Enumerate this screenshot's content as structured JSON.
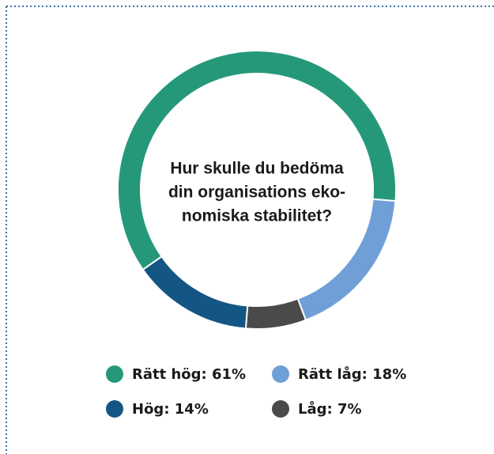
{
  "chart_data": {
    "type": "donut",
    "title": [
      "Hur skulle du bedöma",
      "din organisations eko-",
      "nomiska stabilitet?"
    ],
    "categories": [
      "Rätt hög: 61%",
      "Rätt låg: 18%",
      "Hög: 14%",
      "Låg: 7%"
    ],
    "values": [
      61,
      18,
      14,
      7
    ],
    "colors": [
      "#25987a",
      "#6f9fd6",
      "#135684",
      "#4a4a4a"
    ]
  }
}
